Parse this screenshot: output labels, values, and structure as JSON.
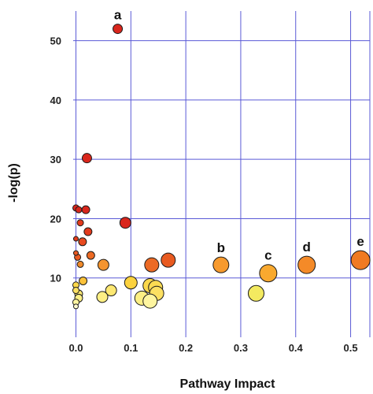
{
  "chart_data": {
    "type": "scatter",
    "title": "",
    "xlabel": "Pathway Impact",
    "ylabel": "-log(p)",
    "xlim": [
      -0.005,
      0.535
    ],
    "ylim": [
      0,
      55
    ],
    "xticks": [
      0.0,
      0.1,
      0.2,
      0.3,
      0.4,
      0.5
    ],
    "xtick_labels": [
      "0.0",
      "0.1",
      "0.2",
      "0.3",
      "0.4",
      "0.5"
    ],
    "yticks": [
      10,
      20,
      30,
      40,
      50
    ],
    "ytick_labels": [
      "10",
      "20",
      "30",
      "40",
      "50"
    ],
    "grid": true,
    "points": [
      {
        "x": 0.076,
        "y": 52.0,
        "size": 6,
        "color": "#d9261c",
        "label": "a"
      },
      {
        "x": 0.02,
        "y": 30.2,
        "size": 6,
        "color": "#d9261c",
        "label": ""
      },
      {
        "x": 0.0,
        "y": 21.8,
        "size": 4,
        "color": "#d9261c",
        "label": ""
      },
      {
        "x": 0.005,
        "y": 21.5,
        "size": 4,
        "color": "#d9261c",
        "label": ""
      },
      {
        "x": 0.018,
        "y": 21.5,
        "size": 5,
        "color": "#d9261c",
        "label": ""
      },
      {
        "x": 0.09,
        "y": 19.3,
        "size": 7,
        "color": "#d9261c",
        "label": ""
      },
      {
        "x": 0.008,
        "y": 19.3,
        "size": 4,
        "color": "#e23a1c",
        "label": ""
      },
      {
        "x": 0.022,
        "y": 17.8,
        "size": 5,
        "color": "#e23a1c",
        "label": ""
      },
      {
        "x": 0.0,
        "y": 16.6,
        "size": 3,
        "color": "#e23a1c",
        "label": ""
      },
      {
        "x": 0.012,
        "y": 16.1,
        "size": 5,
        "color": "#e84a1f",
        "label": ""
      },
      {
        "x": 0.0,
        "y": 14.2,
        "size": 3,
        "color": "#ea5a22",
        "label": ""
      },
      {
        "x": 0.003,
        "y": 13.5,
        "size": 4,
        "color": "#ea5a22",
        "label": ""
      },
      {
        "x": 0.027,
        "y": 13.8,
        "size": 5,
        "color": "#ec6a24",
        "label": ""
      },
      {
        "x": 0.008,
        "y": 12.3,
        "size": 4,
        "color": "#f08a2a",
        "label": ""
      },
      {
        "x": 0.05,
        "y": 12.2,
        "size": 7,
        "color": "#f39430",
        "label": ""
      },
      {
        "x": 0.138,
        "y": 12.2,
        "size": 9,
        "color": "#ec6a24",
        "label": ""
      },
      {
        "x": 0.168,
        "y": 13.0,
        "size": 9,
        "color": "#e85a20",
        "label": ""
      },
      {
        "x": 0.264,
        "y": 12.2,
        "size": 10,
        "color": "#f79a2e",
        "label": "b"
      },
      {
        "x": 0.35,
        "y": 10.8,
        "size": 11,
        "color": "#f9a92f",
        "label": "c"
      },
      {
        "x": 0.42,
        "y": 12.2,
        "size": 11,
        "color": "#f48a28",
        "label": "d"
      },
      {
        "x": 0.518,
        "y": 13.0,
        "size": 12,
        "color": "#f07a22",
        "label": "e"
      },
      {
        "x": 0.013,
        "y": 9.5,
        "size": 5,
        "color": "#fbc23a",
        "label": ""
      },
      {
        "x": 0.1,
        "y": 9.2,
        "size": 8,
        "color": "#fcd23e",
        "label": ""
      },
      {
        "x": 0.135,
        "y": 8.7,
        "size": 9,
        "color": "#fcd84a",
        "label": ""
      },
      {
        "x": 0.145,
        "y": 8.4,
        "size": 9,
        "color": "#fcdc52",
        "label": ""
      },
      {
        "x": 0.147,
        "y": 7.4,
        "size": 9,
        "color": "#fce062",
        "label": ""
      },
      {
        "x": 0.328,
        "y": 7.4,
        "size": 10,
        "color": "#f3ea60",
        "label": ""
      },
      {
        "x": 0.0,
        "y": 8.8,
        "size": 4,
        "color": "#fcd84a",
        "label": ""
      },
      {
        "x": 0.0,
        "y": 7.9,
        "size": 4,
        "color": "#fce062",
        "label": ""
      },
      {
        "x": 0.005,
        "y": 7.3,
        "size": 5,
        "color": "#fde872",
        "label": ""
      },
      {
        "x": 0.005,
        "y": 6.6,
        "size": 5,
        "color": "#fdef84",
        "label": ""
      },
      {
        "x": 0.064,
        "y": 7.9,
        "size": 7,
        "color": "#fde872",
        "label": ""
      },
      {
        "x": 0.048,
        "y": 6.8,
        "size": 7,
        "color": "#fdef84",
        "label": ""
      },
      {
        "x": 0.12,
        "y": 6.6,
        "size": 9,
        "color": "#fdef84",
        "label": ""
      },
      {
        "x": 0.135,
        "y": 6.1,
        "size": 9,
        "color": "#fef5a0",
        "label": ""
      },
      {
        "x": 0.0,
        "y": 5.9,
        "size": 4,
        "color": "#fef5a0",
        "label": ""
      },
      {
        "x": 0.0,
        "y": 5.2,
        "size": 3,
        "color": "#fffbd0",
        "label": ""
      }
    ]
  }
}
